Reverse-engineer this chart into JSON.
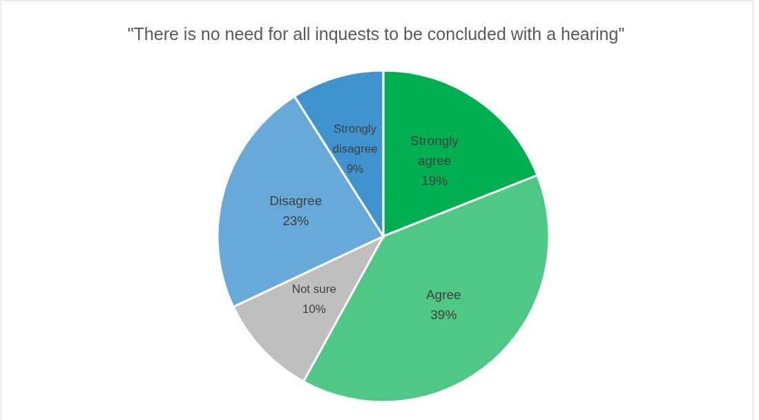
{
  "chart_data": {
    "type": "pie",
    "title": "\"There is no need for all inquests to be concluded with a hearing\"",
    "categories": [
      "Strongly agree",
      "Agree",
      "Not sure",
      "Disagree",
      "Strongly disagree"
    ],
    "values": [
      19,
      39,
      10,
      23,
      9
    ],
    "value_labels": [
      "19%",
      "39%",
      "10%",
      "23%",
      "9%"
    ],
    "colors": [
      "#00b050",
      "#4fc785",
      "#bfbfbf",
      "#67a9d9",
      "#3f93cf"
    ]
  }
}
